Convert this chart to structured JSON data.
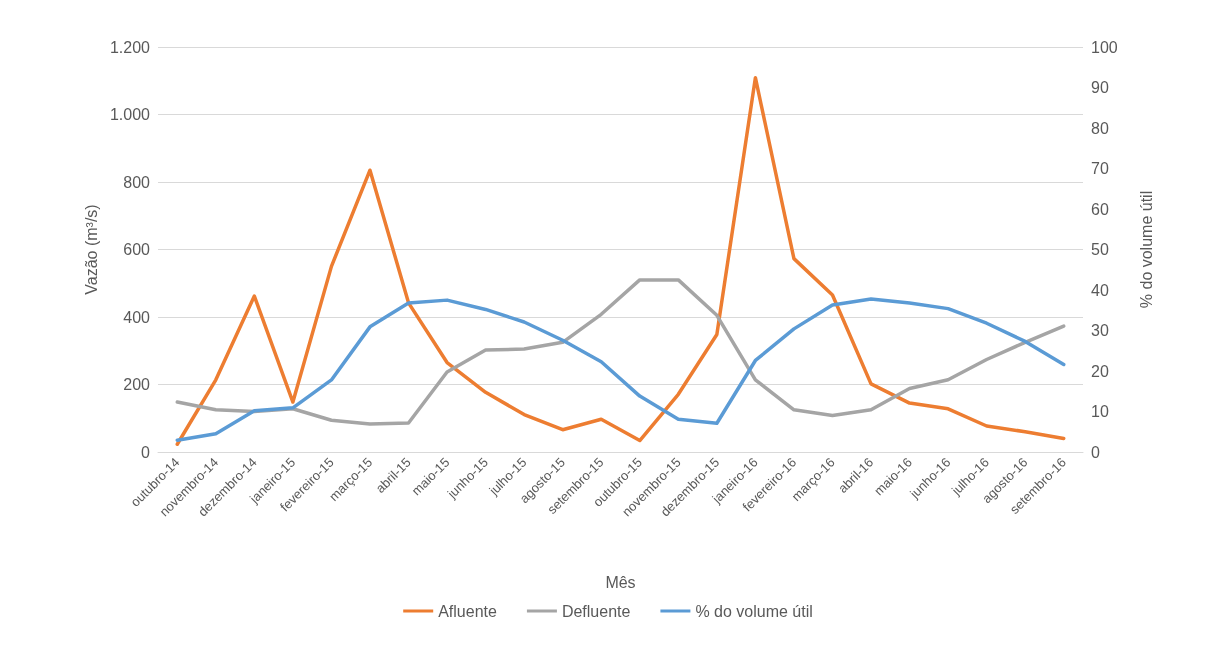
{
  "chart_data": {
    "type": "line",
    "xlabel": "Mês",
    "ylabel": "Vazão (m³/s)",
    "y2label": "% do volume útil",
    "categories": [
      "outubro-14",
      "novembro-14",
      "dezembro-14",
      "janeiro-15",
      "fevereiro-15",
      "março-15",
      "abril-15",
      "maio-15",
      "junho-15",
      "julho-15",
      "agosto-15",
      "setembro-15",
      "outubro-15",
      "novembro-15",
      "dezembro-15",
      "janeiro-16",
      "fevereiro-16",
      "março-16",
      "abril-16",
      "maio-16",
      "junho-16",
      "julho-16",
      "agosto-16",
      "setembro-16"
    ],
    "series": [
      {
        "name": "Afluente",
        "color": "#ed7d31",
        "values": [
          23,
          214,
          462,
          148,
          550,
          835,
          442,
          265,
          177,
          111,
          66,
          97,
          34,
          171,
          348,
          1109,
          573,
          465,
          202,
          145,
          128,
          77,
          60,
          40
        ]
      },
      {
        "name": "Defluente",
        "color": "#a5a5a5",
        "values": [
          148,
          125,
          120,
          128,
          94,
          83,
          86,
          237,
          302,
          305,
          325,
          408,
          510,
          510,
          405,
          214,
          125,
          108,
          125,
          188,
          214,
          274,
          325,
          373
        ]
      },
      {
        "name": "% do volume útil",
        "color": "#5b9bd5",
        "axis": "y2",
        "values": [
          2.9,
          4.5,
          10.2,
          10.9,
          17.8,
          30.9,
          36.8,
          37.5,
          35.2,
          32.1,
          27.6,
          22.3,
          13.8,
          8.1,
          7.1,
          22.6,
          30.4,
          36.3,
          37.8,
          36.8,
          35.4,
          31.8,
          27.3,
          21.6
        ]
      }
    ],
    "ylim": [
      0,
      1200
    ],
    "yticks": [
      0,
      200,
      400,
      600,
      800,
      {
        "value": 1000,
        "label": "1.000"
      },
      {
        "value": 1200,
        "label": "1.200"
      }
    ],
    "y2lim": [
      0,
      100
    ],
    "y2ticks": [
      0,
      10,
      20,
      30,
      40,
      50,
      60,
      70,
      80,
      90,
      100
    ],
    "grid": "y",
    "legend": "bottom",
    "marker": "none",
    "line_style": "solid"
  }
}
